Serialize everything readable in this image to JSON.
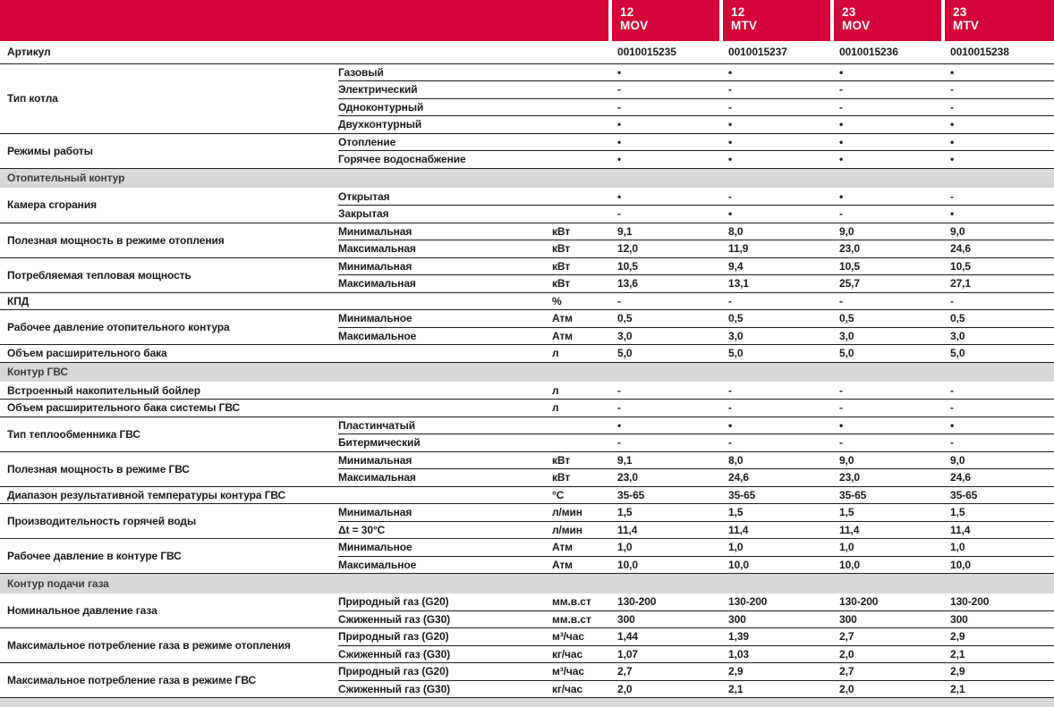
{
  "colors": {
    "brand_red": "#d40538",
    "section_gray": "#d8d8d8",
    "line": "#1c1c1c",
    "text": "#1a1a1a"
  },
  "table": {
    "header": {
      "models": [
        {
          "size": "12",
          "series": "MOV"
        },
        {
          "size": "12",
          "series": "MTV"
        },
        {
          "size": "23",
          "series": "MOV"
        },
        {
          "size": "23",
          "series": "MTV"
        }
      ]
    },
    "groups": [
      {
        "label": "Артикул",
        "rows": [
          {
            "sub": "",
            "unit": "",
            "values": [
              "0010015235",
              "0010015237",
              "0010015236",
              "0010015238"
            ]
          }
        ]
      },
      {
        "label": "Тип котла",
        "rows": [
          {
            "sub": "Газовый",
            "unit": "",
            "values": [
              "•",
              "•",
              "•",
              "•"
            ]
          },
          {
            "sub": "Электрический",
            "unit": "",
            "values": [
              "-",
              "-",
              "-",
              "-"
            ]
          },
          {
            "sub": "Одноконтурный",
            "unit": "",
            "values": [
              "-",
              "-",
              "-",
              "-"
            ]
          },
          {
            "sub": "Двухконтурный",
            "unit": "",
            "values": [
              "•",
              "•",
              "•",
              "•"
            ]
          }
        ]
      },
      {
        "label": "Режимы работы",
        "rows": [
          {
            "sub": "Отопление",
            "unit": "",
            "values": [
              "•",
              "•",
              "•",
              "•"
            ]
          },
          {
            "sub": "Горячее водоснабжение",
            "unit": "",
            "values": [
              "•",
              "•",
              "•",
              "•"
            ]
          }
        ]
      },
      {
        "section": "Отопительный контур"
      },
      {
        "label": "Камера сгорания",
        "rows": [
          {
            "sub": "Открытая",
            "unit": "",
            "values": [
              "•",
              "-",
              "•",
              "-"
            ]
          },
          {
            "sub": "Закрытая",
            "unit": "",
            "values": [
              "-",
              "•",
              "-",
              "•"
            ]
          }
        ]
      },
      {
        "label": "Полезная мощность в режиме отопления",
        "rows": [
          {
            "sub": "Минимальная",
            "unit": "кВт",
            "values": [
              "9,1",
              "8,0",
              "9,0",
              "9,0"
            ]
          },
          {
            "sub": "Максимальная",
            "unit": "кВт",
            "values": [
              "12,0",
              "11,9",
              "23,0",
              "24,6"
            ]
          }
        ]
      },
      {
        "label": "Потребляемая тепловая мощность",
        "rows": [
          {
            "sub": "Минимальная",
            "unit": "кВт",
            "values": [
              "10,5",
              "9,4",
              "10,5",
              "10,5"
            ]
          },
          {
            "sub": "Максимальная",
            "unit": "кВт",
            "values": [
              "13,6",
              "13,1",
              "25,7",
              "27,1"
            ]
          }
        ]
      },
      {
        "label": "КПД",
        "rows": [
          {
            "sub": "",
            "unit": "%",
            "values": [
              "-",
              "-",
              "-",
              "-"
            ]
          }
        ]
      },
      {
        "label": "Рабочее давление отопительного контура",
        "rows": [
          {
            "sub": "Минимальное",
            "unit": "Атм",
            "values": [
              "0,5",
              "0,5",
              "0,5",
              "0,5"
            ]
          },
          {
            "sub": "Максимальное",
            "unit": "Атм",
            "values": [
              "3,0",
              "3,0",
              "3,0",
              "3,0"
            ]
          }
        ]
      },
      {
        "label": "Объем расширительного бака",
        "rows": [
          {
            "sub": "",
            "unit": "л",
            "values": [
              "5,0",
              "5,0",
              "5,0",
              "5,0"
            ]
          }
        ]
      },
      {
        "section": "Контур ГВС"
      },
      {
        "label": "Встроенный накопительный бойлер",
        "rows": [
          {
            "sub": "",
            "unit": "л",
            "values": [
              "-",
              "-",
              "-",
              "-"
            ]
          }
        ]
      },
      {
        "label": "Объем расширительного бака системы ГВС",
        "rows": [
          {
            "sub": "",
            "unit": "л",
            "values": [
              "-",
              "-",
              "-",
              "-"
            ]
          }
        ]
      },
      {
        "label": "Тип теплообменника ГВС",
        "rows": [
          {
            "sub": "Пластинчатый",
            "unit": "",
            "values": [
              "•",
              "•",
              "•",
              "•"
            ]
          },
          {
            "sub": "Битермический",
            "unit": "",
            "values": [
              "-",
              "-",
              "-",
              "-"
            ]
          }
        ]
      },
      {
        "label": "Полезная мощность в режиме ГВС",
        "rows": [
          {
            "sub": "Минимальная",
            "unit": "кВт",
            "values": [
              "9,1",
              "8,0",
              "9,0",
              "9,0"
            ]
          },
          {
            "sub": "Максимальная",
            "unit": "кВт",
            "values": [
              "23,0",
              "24,6",
              "23,0",
              "24,6"
            ]
          }
        ]
      },
      {
        "label": "Диапазон результативной температуры контура ГВС",
        "rows": [
          {
            "sub": "",
            "unit": "°C",
            "values": [
              "35-65",
              "35-65",
              "35-65",
              "35-65"
            ]
          }
        ]
      },
      {
        "label": "Производительность горячей воды",
        "rows": [
          {
            "sub": "Минимальная",
            "unit": "л/мин",
            "values": [
              "1,5",
              "1,5",
              "1,5",
              "1,5"
            ]
          },
          {
            "sub": "Δt = 30°C",
            "unit": "л/мин",
            "values": [
              "11,4",
              "11,4",
              "11,4",
              "11,4"
            ]
          }
        ]
      },
      {
        "label": "Рабочее давление в контуре ГВС",
        "rows": [
          {
            "sub": "Минимальное",
            "unit": "Атм",
            "values": [
              "1,0",
              "1,0",
              "1,0",
              "1,0"
            ]
          },
          {
            "sub": "Максимальное",
            "unit": "Атм",
            "values": [
              "10,0",
              "10,0",
              "10,0",
              "10,0"
            ]
          }
        ]
      },
      {
        "section": "Контур подачи газа"
      },
      {
        "label": "Номинальное давление газа",
        "rows": [
          {
            "sub": "Природный газ (G20)",
            "unit": "мм.в.ст",
            "values": [
              "130-200",
              "130-200",
              "130-200",
              "130-200"
            ]
          },
          {
            "sub": "Сжиженный газ (G30)",
            "unit": "мм.в.ст",
            "values": [
              "300",
              "300",
              "300",
              "300"
            ]
          }
        ]
      },
      {
        "label": "Максимальное потребление газа в режиме отопления",
        "rows": [
          {
            "sub": "Природный газ (G20)",
            "unit": "м³/час",
            "values": [
              "1,44",
              "1,39",
              "2,7",
              "2,9"
            ]
          },
          {
            "sub": "Сжиженный газ (G30)",
            "unit": "кг/час",
            "values": [
              "1,07",
              "1,03",
              "2,0",
              "2,1"
            ]
          }
        ]
      },
      {
        "label": "Максимальное потребление газа в режиме ГВС",
        "rows": [
          {
            "sub": "Природный газ (G20)",
            "unit": "м³/час",
            "values": [
              "2,7",
              "2,9",
              "2,7",
              "2,9"
            ]
          },
          {
            "sub": "Сжиженный газ (G30)",
            "unit": "кг/час",
            "values": [
              "2,0",
              "2,1",
              "2,0",
              "2,1"
            ]
          }
        ]
      },
      {
        "footer": true
      }
    ]
  }
}
